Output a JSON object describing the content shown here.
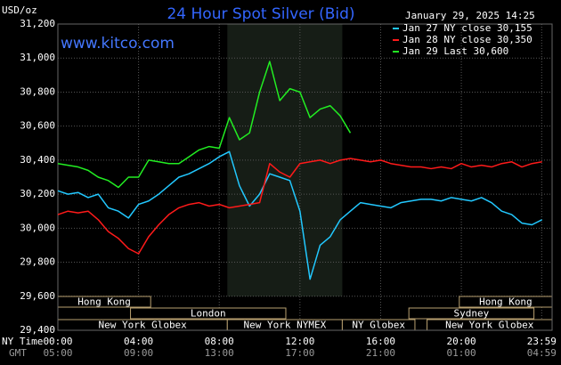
{
  "chart_data": {
    "type": "line",
    "title": "24 Hour Spot Silver (Bid)",
    "y_unit_label": "USD/oz",
    "timestamp": "January 29, 2025 14:25",
    "website": "www.kitco.com",
    "x_row_label": "NY Time",
    "x2_row_label": "GMT",
    "xlim": [
      0,
      24.5
    ],
    "ylim": [
      29400,
      31200
    ],
    "xticks": [
      {
        "value": 0,
        "label": "00:00"
      },
      {
        "value": 4,
        "label": "04:00"
      },
      {
        "value": 8,
        "label": "08:00"
      },
      {
        "value": 12,
        "label": "12:00"
      },
      {
        "value": 16,
        "label": "16:00"
      },
      {
        "value": 20,
        "label": "20:00"
      },
      {
        "value": 23.983,
        "label": "23:59"
      }
    ],
    "gmt_labels": [
      "05:00",
      "09:00",
      "13:00",
      "17:00",
      "21:00",
      "01:00",
      "04:59"
    ],
    "yticks": [
      {
        "value": 29400,
        "label": "29,400"
      },
      {
        "value": 29600,
        "label": "29,600"
      },
      {
        "value": 29800,
        "label": "29,800"
      },
      {
        "value": 30000,
        "label": "30,000"
      },
      {
        "value": 30200,
        "label": "30,200"
      },
      {
        "value": 30400,
        "label": "30,400"
      },
      {
        "value": 30600,
        "label": "30,600"
      },
      {
        "value": 30800,
        "label": "30,800"
      },
      {
        "value": 31000,
        "label": "31,000"
      },
      {
        "value": 31200,
        "label": "31,200"
      }
    ],
    "grid": true,
    "x": [
      0,
      0.5,
      1,
      1.5,
      2,
      2.5,
      3,
      3.5,
      4,
      4.5,
      5,
      5.5,
      6,
      6.5,
      7,
      7.5,
      8,
      8.5,
      9,
      9.5,
      10,
      10.5,
      11,
      11.5,
      12,
      12.5,
      13,
      13.5,
      14,
      14.5,
      15,
      15.5,
      16,
      16.5,
      17,
      17.5,
      18,
      18.5,
      19,
      19.5,
      20,
      20.5,
      21,
      21.5,
      22,
      22.5,
      23,
      23.5,
      24
    ],
    "series": [
      {
        "name": "Jan 27 NY close 30,155",
        "color": "#22c8ff",
        "values": [
          30220,
          30200,
          30210,
          30180,
          30200,
          30120,
          30100,
          30060,
          30140,
          30160,
          30200,
          30250,
          30300,
          30320,
          30350,
          30380,
          30420,
          30450,
          30250,
          30130,
          30200,
          30320,
          30300,
          30280,
          30100,
          29700,
          29900,
          29950,
          30050,
          30100,
          30150,
          30140,
          30130,
          30120,
          30150,
          30160,
          30170,
          30170,
          30160,
          30180,
          30170,
          30160,
          30180,
          30150,
          30100,
          30080,
          30030,
          30020,
          30050
        ]
      },
      {
        "name": "Jan 28 NY close 30,350",
        "color": "#ff1a1a",
        "values": [
          30080,
          30100,
          30090,
          30100,
          30050,
          29980,
          29940,
          29880,
          29850,
          29950,
          30020,
          30080,
          30120,
          30140,
          30150,
          30130,
          30140,
          30120,
          30130,
          30140,
          30150,
          30380,
          30330,
          30300,
          30380,
          30390,
          30400,
          30380,
          30400,
          30410,
          30400,
          30390,
          30400,
          30380,
          30370,
          30360,
          30360,
          30350,
          30360,
          30350,
          30380,
          30360,
          30370,
          30360,
          30380,
          30390,
          30360,
          30380,
          30390
        ]
      },
      {
        "name": "Jan 29 Last 30,600",
        "color": "#22ee22",
        "values": [
          30380,
          30370,
          30360,
          30340,
          30300,
          30280,
          30240,
          30300,
          30300,
          30400,
          30390,
          30380,
          30380,
          30420,
          30460,
          30480,
          30470,
          30650,
          30520,
          30560,
          30800,
          30980,
          30750,
          30820,
          30800,
          30650,
          30700,
          30720,
          30660,
          30560,
          null,
          null,
          null,
          null,
          null,
          null,
          null,
          null,
          null,
          null,
          null,
          null,
          null,
          null,
          null,
          null,
          null,
          null,
          null
        ]
      }
    ],
    "sessions": [
      {
        "label": "Hong Kong",
        "row": 0,
        "start": 0,
        "end": 4.6
      },
      {
        "label": "Hong Kong",
        "row": 0,
        "start": 19.9,
        "end": 24.5
      },
      {
        "label": "London",
        "row": 1,
        "start": 3.6,
        "end": 11.3
      },
      {
        "label": "Sydney",
        "row": 1,
        "start": 17.4,
        "end": 23.6
      },
      {
        "label": "New York Globex",
        "row": 2,
        "start": 0,
        "end": 8.4
      },
      {
        "label": "New York NYMEX",
        "row": 2,
        "start": 8.4,
        "end": 14.1,
        "shaded": true
      },
      {
        "label": "NY Globex",
        "row": 2,
        "start": 14.1,
        "end": 17.7
      },
      {
        "label": "New York Globex",
        "row": 2,
        "start": 18.3,
        "end": 24.5
      }
    ]
  }
}
